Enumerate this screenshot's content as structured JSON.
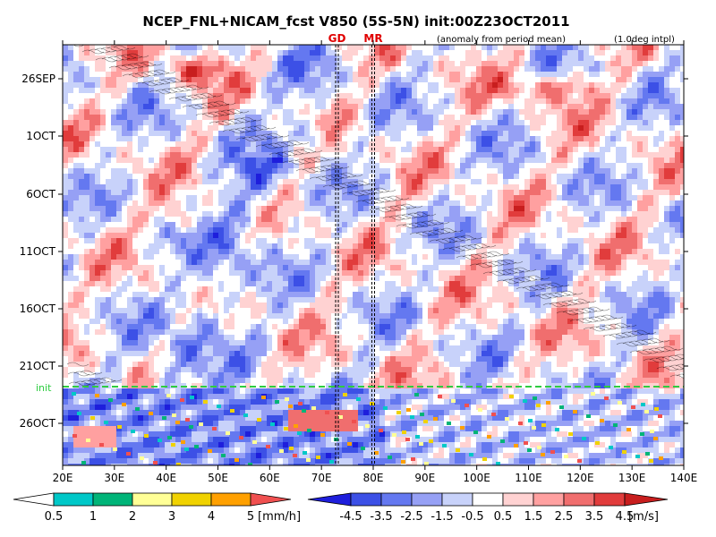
{
  "chart_data": {
    "type": "heatmap",
    "title": "NCEP_FNL+NICAM_fcst V850 (5S-5N) init:00Z23OCT2011",
    "subtitle_left": "(anomaly from period mean)",
    "subtitle_right": "(1.0deg intpl)",
    "x_axis": {
      "unit": "longitude",
      "range": [
        20,
        140
      ],
      "tick_labels": [
        "20E",
        "30E",
        "40E",
        "50E",
        "60E",
        "70E",
        "80E",
        "90E",
        "100E",
        "110E",
        "120E",
        "130E",
        "140E"
      ]
    },
    "y_axis": {
      "unit": "date",
      "tick_labels": [
        "26SEP",
        "1OCT",
        "6OCT",
        "11OCT",
        "16OCT",
        "21OCT",
        "26OCT"
      ]
    },
    "markers": [
      {
        "label": "GD",
        "longitude": 73,
        "color": "#e00000"
      },
      {
        "label": "MR",
        "longitude": 80,
        "color": "#e00000"
      }
    ],
    "init_line": {
      "label": "init",
      "date": "23OCT",
      "color": "#2ecc40"
    },
    "precip_legend": {
      "unit": "[mm/h]",
      "tick_labels": [
        "0.5",
        "1",
        "2",
        "3",
        "4",
        "5"
      ],
      "colors": [
        "#ffffff",
        "#00c8c8",
        "#00b478",
        "#ffff96",
        "#f0d200",
        "#ffa000",
        "#f05050"
      ]
    },
    "wind_legend": {
      "unit": "[m/s]",
      "tick_labels": [
        "-4.5",
        "-3.5",
        "-2.5",
        "-1.5",
        "-0.5",
        "0.5",
        "1.5",
        "2.5",
        "3.5",
        "4.5"
      ],
      "colors": [
        "#1e1edc",
        "#3c50e6",
        "#6478f0",
        "#96a0f5",
        "#c8d2fa",
        "#ffffff",
        "#ffd2d2",
        "#ffa0a0",
        "#f06e6e",
        "#e13c3c",
        "#c81e1e"
      ]
    }
  }
}
